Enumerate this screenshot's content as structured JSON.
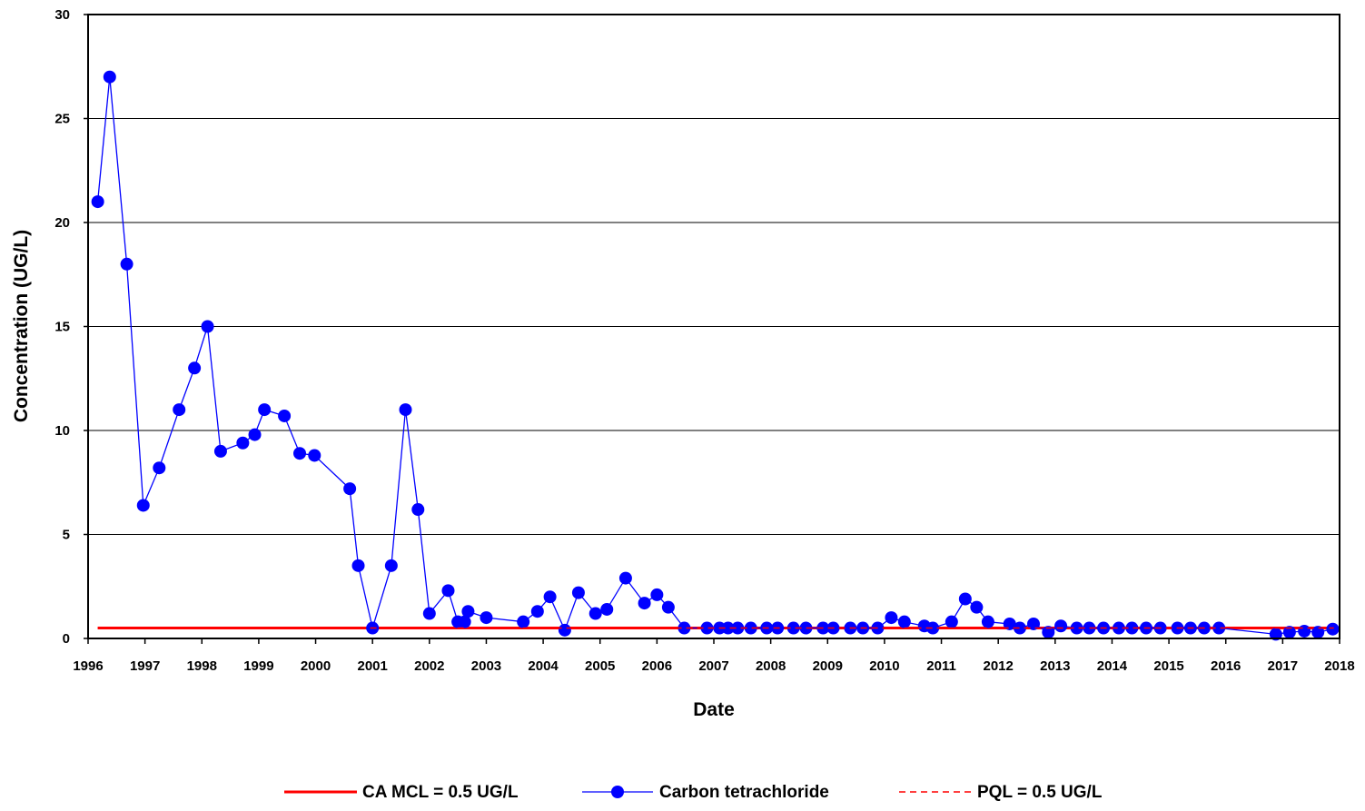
{
  "chart_data": {
    "type": "line",
    "xlabel": "Date",
    "ylabel": "Concentration (UG/L)",
    "xlim": [
      1996,
      2018
    ],
    "ylim": [
      0,
      30
    ],
    "x_ticks": [
      "1996",
      "1997",
      "1998",
      "1999",
      "2000",
      "2001",
      "2002",
      "2003",
      "2004",
      "2005",
      "2006",
      "2007",
      "2008",
      "2009",
      "2010",
      "2011",
      "2012",
      "2013",
      "2014",
      "2015",
      "2016",
      "2017",
      "2018"
    ],
    "y_ticks": [
      "0",
      "5",
      "10",
      "15",
      "20",
      "25",
      "30"
    ],
    "grid": "horizontal",
    "legend_position": "bottom",
    "colors": {
      "mcl": "#ff0000",
      "series": "#0000ff",
      "pql": "#ff0000",
      "grid": "#000000"
    },
    "series": [
      {
        "name": "CA MCL = 0.5 UG/L",
        "style": "solid-line",
        "x": [
          1996.17,
          2017.9
        ],
        "y": [
          0.5,
          0.5
        ]
      },
      {
        "name": "Carbon tetrachloride",
        "style": "line-with-circle-markers",
        "x": [
          1996.17,
          1996.38,
          1996.68,
          1996.97,
          1997.25,
          1997.6,
          1997.87,
          1998.1,
          1998.33,
          1998.72,
          1998.93,
          1999.1,
          1999.45,
          1999.72,
          1999.98,
          2000.6,
          2000.75,
          2001.0,
          2001.33,
          2001.58,
          2001.8,
          2002.0,
          2002.33,
          2002.5,
          2002.62,
          2002.68,
          2003.0,
          2003.65,
          2003.9,
          2004.12,
          2004.38,
          2004.62,
          2004.92,
          2005.12,
          2005.45,
          2005.78,
          2006.0,
          2006.2,
          2006.48,
          2006.88,
          2007.1,
          2007.25,
          2007.42,
          2007.65,
          2007.93,
          2008.12,
          2008.4,
          2008.62,
          2008.92,
          2009.1,
          2009.4,
          2009.62,
          2009.88,
          2010.12,
          2010.35,
          2010.7,
          2010.85,
          2011.18,
          2011.42,
          2011.62,
          2011.82,
          2012.2,
          2012.38,
          2012.62,
          2012.88,
          2013.1,
          2013.38,
          2013.6,
          2013.85,
          2014.12,
          2014.35,
          2014.6,
          2014.85,
          2015.15,
          2015.38,
          2015.62,
          2015.88,
          2016.88,
          2017.12,
          2017.38,
          2017.62,
          2017.88
        ],
        "y": [
          21,
          27,
          18,
          6.4,
          8.2,
          11,
          13,
          15,
          9,
          9.4,
          9.8,
          11,
          10.7,
          8.9,
          8.8,
          7.2,
          3.5,
          0.5,
          3.5,
          11,
          6.2,
          1.2,
          2.3,
          0.8,
          0.8,
          1.3,
          1.0,
          0.8,
          1.3,
          2.0,
          0.4,
          2.2,
          1.2,
          1.4,
          2.9,
          1.7,
          2.1,
          1.5,
          0.5,
          0.5,
          0.5,
          0.5,
          0.5,
          0.5,
          0.5,
          0.5,
          0.5,
          0.5,
          0.5,
          0.5,
          0.5,
          0.5,
          0.5,
          1.0,
          0.8,
          0.6,
          0.5,
          0.8,
          1.9,
          1.5,
          0.8,
          0.7,
          0.5,
          0.7,
          0.3,
          0.6,
          0.5,
          0.5,
          0.5,
          0.5,
          0.5,
          0.5,
          0.5,
          0.5,
          0.5,
          0.5,
          0.5,
          0.2,
          0.3,
          0.35,
          0.3,
          0.45
        ]
      },
      {
        "name": "PQL = 0.5 UG/L",
        "style": "dashed-line",
        "x": [
          1996.17,
          2017.9
        ],
        "y": [
          0.5,
          0.5
        ]
      }
    ]
  }
}
